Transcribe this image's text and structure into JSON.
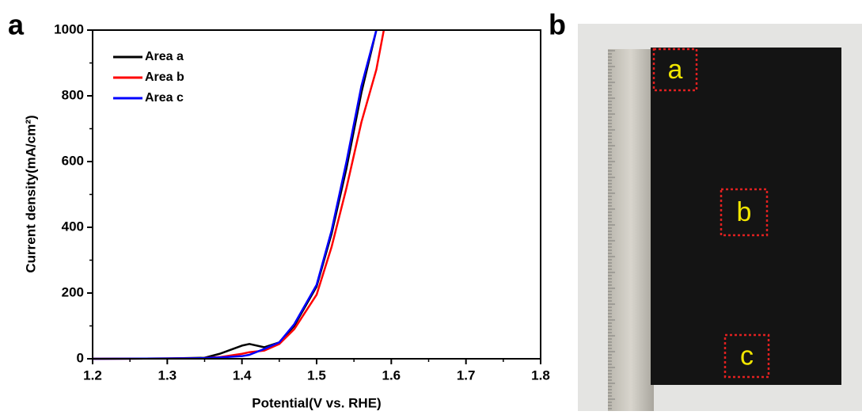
{
  "chart_data": {
    "type": "line",
    "panel_label": "a",
    "x_label": "Potential(V vs. RHE)",
    "y_label": "Current density(mA/cm²)",
    "x": [
      1.2,
      1.3,
      1.35,
      1.37,
      1.4,
      1.41,
      1.43,
      1.45,
      1.47,
      1.5,
      1.52,
      1.54,
      1.56,
      1.58,
      1.59
    ],
    "series": [
      {
        "name": "Area a",
        "color": "#000000",
        "values": [
          0,
          1,
          3,
          15,
          40,
          45,
          35,
          50,
          100,
          220,
          380,
          580,
          810,
          1000,
          null
        ]
      },
      {
        "name": "Area b",
        "color": "#ff0000",
        "values": [
          0,
          1,
          2,
          5,
          15,
          20,
          25,
          45,
          90,
          195,
          340,
          520,
          720,
          880,
          1000
        ]
      },
      {
        "name": "Area c",
        "color": "#0000ff",
        "values": [
          0,
          1,
          2,
          4,
          8,
          12,
          30,
          50,
          105,
          225,
          390,
          600,
          830,
          1000,
          null
        ]
      }
    ],
    "xlim": [
      1.2,
      1.8
    ],
    "xticks": [
      1.2,
      1.3,
      1.4,
      1.5,
      1.6,
      1.7,
      1.8
    ],
    "ylim": [
      0,
      1000
    ],
    "yticks": [
      0,
      200,
      400,
      600,
      800,
      1000
    ],
    "legend": "upper left"
  },
  "photo": {
    "panel_label": "b",
    "regions": [
      "a",
      "b",
      "c"
    ]
  }
}
